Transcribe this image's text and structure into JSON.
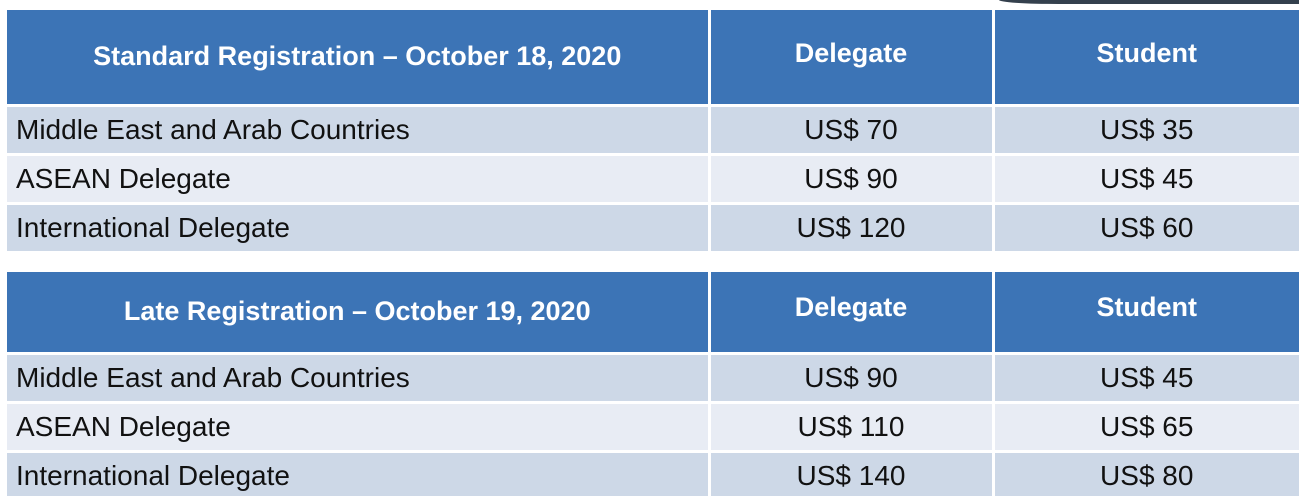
{
  "tables": [
    {
      "title": "Standard Registration – October 18, 2020",
      "columns": [
        "Delegate",
        "Student"
      ],
      "rows": [
        {
          "region": "Middle East and Arab Countries",
          "delegate": "US$ 70",
          "student": "US$ 35"
        },
        {
          "region": "ASEAN Delegate",
          "delegate": "US$ 90",
          "student": "US$ 45"
        },
        {
          "region": "International Delegate",
          "delegate": "US$ 120",
          "student": "US$ 60"
        }
      ]
    },
    {
      "title": "Late Registration – October 19, 2020",
      "columns": [
        "Delegate",
        "Student"
      ],
      "rows": [
        {
          "region": "Middle East and Arab Countries",
          "delegate": "US$ 90",
          "student": "US$ 45"
        },
        {
          "region": "ASEAN Delegate",
          "delegate": "US$ 110",
          "student": "US$ 65"
        },
        {
          "region": "International Delegate",
          "delegate": "US$ 140",
          "student": "US$ 80"
        }
      ]
    }
  ],
  "colors": {
    "header_bg": "#3c74b6",
    "row_odd_bg": "#cdd8e7",
    "row_even_bg": "#e8ecf4"
  }
}
